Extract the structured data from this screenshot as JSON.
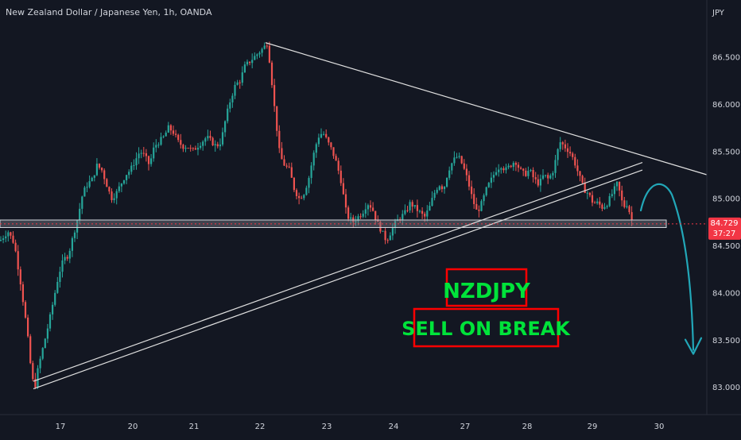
{
  "header": {
    "symbol_title": "New Zealand Dollar / Japanese Yen, 1h, OANDA",
    "currency_label": "JPY"
  },
  "price_label": {
    "value": "84.729",
    "countdown": "37:27"
  },
  "annotations": {
    "pair_label": "NZDJPY",
    "signal_label": "SELL ON BREAK"
  },
  "colors": {
    "background": "#131722",
    "bull": "#26a69a",
    "bear": "#ef5350",
    "price_tag": "#f23645",
    "arrow": "#22a7b8",
    "callout_border": "#ff0000",
    "callout_text": "#00e33a",
    "trendline": "#e0e0e0"
  },
  "chart_data": {
    "type": "candlestick",
    "xlabel": "",
    "ylabel": "",
    "y_axis_labels": [
      "86.500",
      "86.000",
      "85.500",
      "85.000",
      "84.500",
      "84.000",
      "83.500",
      "83.000"
    ],
    "x_axis_labels": [
      "17",
      "20",
      "21",
      "22",
      "23",
      "24",
      "27",
      "28",
      "29",
      "30"
    ],
    "ylim": [
      82.85,
      86.85
    ],
    "last_price": 84.729,
    "grid": false,
    "price_path": [
      [
        0,
        84.55
      ],
      [
        10,
        84.65
      ],
      [
        18,
        84.52
      ],
      [
        26,
        84.1
      ],
      [
        34,
        83.6
      ],
      [
        40,
        83.1
      ],
      [
        44,
        83.0
      ],
      [
        48,
        83.2
      ],
      [
        55,
        83.45
      ],
      [
        62,
        83.7
      ],
      [
        68,
        83.95
      ],
      [
        74,
        84.2
      ],
      [
        80,
        84.35
      ],
      [
        86,
        84.4
      ],
      [
        92,
        84.6
      ],
      [
        98,
        84.8
      ],
      [
        104,
        85.05
      ],
      [
        110,
        85.15
      ],
      [
        116,
        85.2
      ],
      [
        122,
        85.35
      ],
      [
        128,
        85.3
      ],
      [
        134,
        85.15
      ],
      [
        140,
        85.0
      ],
      [
        146,
        85.05
      ],
      [
        152,
        85.15
      ],
      [
        158,
        85.25
      ],
      [
        164,
        85.3
      ],
      [
        170,
        85.4
      ],
      [
        176,
        85.5
      ],
      [
        182,
        85.45
      ],
      [
        188,
        85.35
      ],
      [
        194,
        85.55
      ],
      [
        200,
        85.6
      ],
      [
        206,
        85.65
      ],
      [
        212,
        85.75
      ],
      [
        218,
        85.7
      ],
      [
        224,
        85.6
      ],
      [
        230,
        85.55
      ],
      [
        236,
        85.55
      ],
      [
        242,
        85.5
      ],
      [
        248,
        85.55
      ],
      [
        254,
        85.6
      ],
      [
        260,
        85.65
      ],
      [
        266,
        85.6
      ],
      [
        272,
        85.55
      ],
      [
        278,
        85.6
      ],
      [
        284,
        85.85
      ],
      [
        290,
        86.05
      ],
      [
        296,
        86.2
      ],
      [
        302,
        86.25
      ],
      [
        308,
        86.4
      ],
      [
        314,
        86.45
      ],
      [
        320,
        86.5
      ],
      [
        326,
        86.55
      ],
      [
        332,
        86.6
      ],
      [
        336,
        86.65
      ],
      [
        340,
        86.4
      ],
      [
        344,
        86.05
      ],
      [
        348,
        85.75
      ],
      [
        352,
        85.45
      ],
      [
        358,
        85.35
      ],
      [
        364,
        85.3
      ],
      [
        370,
        85.1
      ],
      [
        376,
        85.0
      ],
      [
        382,
        85.05
      ],
      [
        388,
        85.2
      ],
      [
        394,
        85.45
      ],
      [
        400,
        85.65
      ],
      [
        406,
        85.7
      ],
      [
        412,
        85.6
      ],
      [
        418,
        85.5
      ],
      [
        424,
        85.35
      ],
      [
        430,
        85.15
      ],
      [
        434,
        84.9
      ],
      [
        438,
        84.8
      ],
      [
        444,
        84.75
      ],
      [
        450,
        84.8
      ],
      [
        456,
        84.85
      ],
      [
        462,
        84.95
      ],
      [
        468,
        84.9
      ],
      [
        474,
        84.75
      ],
      [
        480,
        84.65
      ],
      [
        486,
        84.55
      ],
      [
        492,
        84.65
      ],
      [
        498,
        84.75
      ],
      [
        504,
        84.8
      ],
      [
        510,
        84.85
      ],
      [
        516,
        84.95
      ],
      [
        522,
        84.9
      ],
      [
        528,
        84.85
      ],
      [
        534,
        84.8
      ],
      [
        540,
        84.9
      ],
      [
        546,
        85.05
      ],
      [
        552,
        85.15
      ],
      [
        558,
        85.1
      ],
      [
        564,
        85.3
      ],
      [
        570,
        85.4
      ],
      [
        576,
        85.45
      ],
      [
        582,
        85.35
      ],
      [
        588,
        85.2
      ],
      [
        594,
        85.0
      ],
      [
        600,
        84.85
      ],
      [
        606,
        84.95
      ],
      [
        612,
        85.1
      ],
      [
        618,
        85.2
      ],
      [
        624,
        85.3
      ],
      [
        630,
        85.35
      ],
      [
        636,
        85.3
      ],
      [
        642,
        85.35
      ],
      [
        648,
        85.4
      ],
      [
        654,
        85.3
      ],
      [
        660,
        85.25
      ],
      [
        666,
        85.3
      ],
      [
        672,
        85.2
      ],
      [
        678,
        85.15
      ],
      [
        684,
        85.25
      ],
      [
        690,
        85.2
      ],
      [
        696,
        85.3
      ],
      [
        700,
        85.45
      ],
      [
        704,
        85.6
      ],
      [
        710,
        85.55
      ],
      [
        716,
        85.5
      ],
      [
        722,
        85.4
      ],
      [
        728,
        85.25
      ],
      [
        734,
        85.1
      ],
      [
        740,
        85.05
      ],
      [
        746,
        84.95
      ],
      [
        752,
        84.95
      ],
      [
        758,
        84.9
      ],
      [
        764,
        84.95
      ],
      [
        770,
        85.05
      ],
      [
        776,
        85.15
      ],
      [
        780,
        85.05
      ],
      [
        784,
        84.9
      ],
      [
        788,
        84.95
      ],
      [
        792,
        84.85
      ],
      [
        796,
        84.73
      ]
    ],
    "support_zone": [
      84.69,
      84.77
    ],
    "descending_resistance": {
      "from": {
        "day": "22",
        "price": 86.65
      },
      "to": {
        "day": "30",
        "price": 85.25
      }
    },
    "ascending_channel": {
      "lower": {
        "from": {
          "day": "17",
          "price": 82.98
        },
        "to": {
          "day": "29",
          "price": 85.3
        }
      },
      "upper": {
        "from": {
          "day": "17",
          "price": 83.06
        },
        "to": {
          "day": "29",
          "price": 85.38
        }
      }
    },
    "projection_target": 83.35
  }
}
